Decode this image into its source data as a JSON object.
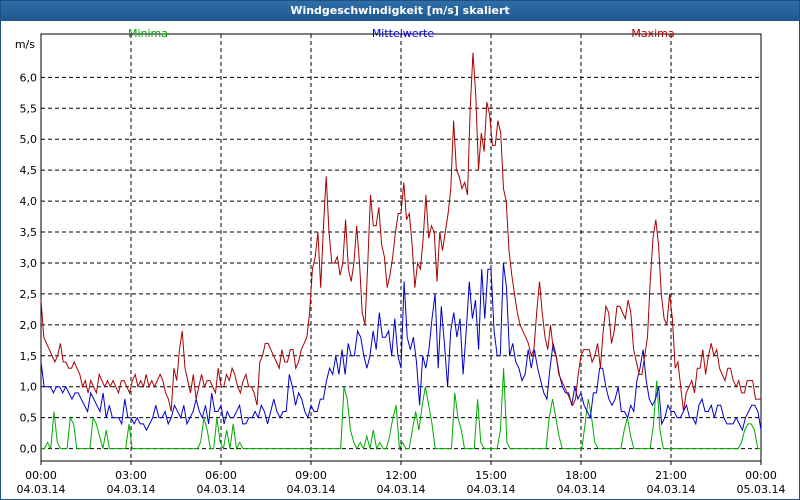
{
  "window": {
    "title": "Windgeschwindigkeit [m/s] skaliert"
  },
  "chart_data": {
    "type": "line",
    "title": "Windgeschwindigkeit [m/s] skaliert",
    "ylabel": "m/s",
    "xlabel": "",
    "grid": true,
    "legend_placement": "top",
    "x_range_hours": [
      0,
      24
    ],
    "ylim": [
      -0.2,
      6.7
    ],
    "y_ticks": [
      "0,0",
      "0,5",
      "1,0",
      "1,5",
      "2,0",
      "2,5",
      "3,0",
      "3,5",
      "4,0",
      "4,5",
      "5,0",
      "5,5",
      "6,0"
    ],
    "y_tick_values": [
      0,
      0.5,
      1,
      1.5,
      2,
      2.5,
      3,
      3.5,
      4,
      4.5,
      5,
      5.5,
      6
    ],
    "x_ticks": [
      {
        "time": "00:00",
        "date": "04.03.14"
      },
      {
        "time": "03:00",
        "date": "04.03.14"
      },
      {
        "time": "06:00",
        "date": "04.03.14"
      },
      {
        "time": "09:00",
        "date": "04.03.14"
      },
      {
        "time": "12:00",
        "date": "04.03.14"
      },
      {
        "time": "15:00",
        "date": "04.03.14"
      },
      {
        "time": "18:00",
        "date": "04.03.14"
      },
      {
        "time": "21:00",
        "date": "04.03.14"
      },
      {
        "time": "00:00",
        "date": "05.03.14"
      }
    ],
    "series": [
      {
        "name": "Minima",
        "color": "#00aa00",
        "values": [
          0,
          0,
          0.1,
          0,
          0.6,
          0.1,
          0,
          0,
          0,
          0.5,
          0.4,
          0,
          0,
          0,
          0,
          0,
          0.5,
          0.4,
          0.2,
          0,
          0.3,
          0,
          0,
          0,
          0,
          0,
          0,
          0.4,
          0,
          0,
          0,
          0,
          0,
          0,
          0,
          0,
          0,
          0,
          0,
          0,
          0,
          0,
          0,
          0,
          0,
          0,
          0,
          0,
          0,
          0.1,
          0.5,
          0.3,
          0,
          0,
          0.5,
          0.1,
          0,
          0.3,
          0,
          0.4,
          0,
          0.1,
          0,
          0,
          0,
          0,
          0,
          0,
          0,
          0,
          0,
          0,
          0,
          0,
          0,
          0,
          0,
          0,
          0,
          0,
          0,
          0,
          0,
          0,
          0,
          0,
          0,
          0,
          0,
          0,
          0,
          0,
          0,
          1,
          0.8,
          0.3,
          0.1,
          0,
          0.1,
          0,
          0.2,
          0,
          0.3,
          0,
          0.1,
          0,
          0,
          0.2,
          0.5,
          0.7,
          0,
          0.1,
          0,
          0,
          0.3,
          0.6,
          0.3,
          0.7,
          1,
          0.7,
          0.4,
          0,
          0,
          0,
          0,
          0,
          0,
          0.9,
          0.5,
          0.3,
          0,
          0,
          0,
          0,
          0.8,
          0.1,
          0,
          0,
          0,
          0,
          0,
          0.3,
          1.3,
          0.1,
          0,
          0,
          0,
          0,
          0,
          0,
          0,
          0,
          0,
          0,
          0,
          0,
          0.5,
          0.8,
          0.5,
          0.2,
          0,
          0,
          0,
          0,
          0,
          0,
          0,
          0.4,
          0.8,
          0.5,
          0.1,
          0,
          0,
          0,
          0,
          0,
          0,
          0,
          0,
          0.3,
          0.5,
          0.2,
          0,
          0,
          0,
          0,
          0,
          0,
          0.4,
          1.1,
          0.3,
          0,
          0,
          0,
          0,
          0,
          0,
          0,
          0,
          0,
          0,
          0,
          0,
          0,
          0,
          0,
          0,
          0,
          0,
          0,
          0,
          0,
          0,
          0,
          0,
          0.1,
          0.3,
          0.4,
          0.4,
          0.3,
          0,
          0
        ],
        "mean": true
      },
      {
        "name": "Mittelwerte",
        "color": "#0000cc",
        "values": [
          1.4,
          1,
          1,
          1,
          0.9,
          1,
          1,
          0.9,
          1,
          0.9,
          0.8,
          0.9,
          0.9,
          0.8,
          0.7,
          0.6,
          0.9,
          0.8,
          0.7,
          0.6,
          0.9,
          0.5,
          0.7,
          0.5,
          0.5,
          0.5,
          0.4,
          0.8,
          0.5,
          0.5,
          0.4,
          0.5,
          0.4,
          0.4,
          0.3,
          0.4,
          0.5,
          0.7,
          0.5,
          0.5,
          0.6,
          0.4,
          0.5,
          0.7,
          0.6,
          0.5,
          0.7,
          0.4,
          0.5,
          0.6,
          0.8,
          0.6,
          0.5,
          0.7,
          0.4,
          0.9,
          0.6,
          0.6,
          0.7,
          0.4,
          0.6,
          0.5,
          0.5,
          0.6,
          0.7,
          0.4,
          0.4,
          0.5,
          0.5,
          0.6,
          0.5,
          0.7,
          0.6,
          0.4,
          0.6,
          0.8,
          0.6,
          0.5,
          0.6,
          0.6,
          1.2,
          1,
          0.7,
          0.9,
          0.8,
          0.6,
          0.5,
          0.7,
          0.6,
          0.6,
          0.8,
          0.8,
          1.1,
          1.3,
          1.2,
          1.5,
          1.2,
          1.6,
          1.2,
          1.7,
          1.5,
          1.5,
          1.9,
          1.8,
          1.5,
          1.3,
          1.5,
          1.9,
          1.6,
          2.2,
          1.8,
          1.8,
          1.9,
          1.5,
          2.1,
          1.5,
          1.3,
          2.7,
          1.8,
          1.6,
          1.8,
          1.4,
          0.7,
          1.5,
          1.3,
          1.6,
          2.1,
          2.5,
          1.3,
          2.3,
          1.7,
          1,
          1.9,
          2.2,
          1.8,
          2.1,
          1.2,
          1.9,
          2.7,
          2.1,
          2.4,
          1.6,
          2.9,
          2.1,
          2.9,
          2.9,
          1.9,
          1.5,
          1.5,
          3,
          2.6,
          1.5,
          1.7,
          1.4,
          1.3,
          1.1,
          1.2,
          1.6,
          1.3,
          1.6,
          1.3,
          1.1,
          0.9,
          0.8,
          1.3,
          1.7,
          1.5,
          1.2,
          1,
          0.9,
          0.9,
          0.7,
          1,
          0.8,
          0.9,
          0.7,
          0.6,
          0.5,
          0.9,
          0.9,
          1.3,
          1.3,
          1,
          0.8,
          0.7,
          0.8,
          1,
          0.6,
          0.6,
          0.5,
          0.7,
          0.6,
          1.1,
          1.3,
          1.6,
          1.1,
          0.8,
          0.7,
          0.8,
          1,
          0.4,
          0.5,
          0.7,
          0.6,
          0.6,
          0.5,
          0.5,
          0.6,
          0.7,
          0.5,
          0.5,
          0.4,
          0.7,
          0.8,
          0.6,
          0.6,
          0.7,
          0.5,
          0.7,
          0.7,
          0.5,
          0.4,
          0.4,
          0.4,
          0.5,
          0.4,
          0.3,
          0.5,
          0.6,
          0.7,
          0.7,
          0.6,
          0.3
        ]
      },
      {
        "name": "Maxima",
        "color": "#aa0000",
        "values": [
          2.4,
          1.8,
          1.7,
          1.6,
          1.5,
          1.4,
          1.5,
          1.7,
          1.4,
          1.4,
          1.3,
          1.3,
          1.4,
          1.3,
          1.2,
          1,
          1.1,
          0.9,
          1.1,
          1,
          0.9,
          1.2,
          1.1,
          1,
          1.1,
          1,
          1.1,
          1,
          0.9,
          1.1,
          1.1,
          1,
          0.9,
          1.1,
          1.2,
          1,
          1.1,
          1,
          1.2,
          1,
          1.1,
          1,
          1.1,
          1.2,
          1.1,
          0.9,
          0.8,
          0.6,
          1.3,
          1.1,
          1.6,
          1.9,
          1.3,
          1.1,
          0.9,
          1.2,
          0.8,
          1,
          1.2,
          1,
          1.1,
          1.1,
          1,
          0.9,
          1.3,
          1,
          1,
          1.2,
          1.1,
          1.3,
          1.2,
          1,
          0.9,
          1.1,
          1.2,
          1,
          1,
          0.9,
          0.7,
          1.4,
          1.5,
          1.7,
          1.7,
          1.6,
          1.5,
          1.4,
          1.3,
          1.6,
          1.4,
          1.4,
          1.6,
          1.6,
          1.3,
          1.4,
          1.6,
          1.7,
          1.8,
          2.2,
          2.9,
          3.1,
          3.5,
          2.6,
          3.6,
          4.4,
          3.5,
          3,
          3,
          3.1,
          2.8,
          3,
          3.7,
          2.9,
          2.7,
          3,
          3.6,
          3,
          2.2,
          2,
          3,
          4.1,
          3.6,
          3.6,
          3.9,
          3.3,
          3.1,
          2.6,
          2.8,
          3.1,
          3.5,
          3.8,
          3.8,
          4.3,
          3.7,
          3.8,
          3.3,
          2.6,
          3,
          2.9,
          3.4,
          4.1,
          3.4,
          3.6,
          3.5,
          2.7,
          3.5,
          3.2,
          3.5,
          3.8,
          4.2,
          5.3,
          4.5,
          4.4,
          4.2,
          4.3,
          4.1,
          5.5,
          6.4,
          5.7,
          4.5,
          5.1,
          4.8,
          5.6,
          5.4,
          4.9,
          4.9,
          5.3,
          5.1,
          4.2,
          4,
          3.2,
          2.8,
          2.5,
          2.2,
          2,
          1.9,
          1.8,
          1.7,
          1.5,
          1.6,
          2.2,
          2.7,
          2.2,
          1.8,
          1.6,
          2,
          1.6,
          1.5,
          1.2,
          1.1,
          1,
          0.9,
          0.8,
          0.7,
          0.8,
          1.2,
          1.5,
          1.6,
          1.6,
          1.6,
          1.4,
          1.5,
          1.7,
          1.3,
          1.9,
          2.3,
          2.2,
          1.7,
          1.9,
          2.3,
          2.3,
          2.2,
          2.1,
          2.4,
          2.2,
          1.6,
          1.4,
          1.2,
          1.2,
          1.5,
          1.8,
          2.7,
          3.4,
          3.7,
          3.3,
          2.5,
          2.1,
          2,
          2.5,
          2.1,
          1.3,
          1.4,
          1,
          0.6,
          0.9,
          1,
          1.1,
          0.9,
          1.3,
          1.3,
          1.6,
          1.2,
          1.5,
          1.7,
          1.5,
          1.6,
          1.3,
          1.2,
          1.1,
          1.3,
          1.3,
          1.1,
          1,
          1.1,
          0.9,
          0.9,
          1.1,
          1.1,
          1.1,
          0.8,
          0.8,
          0.8
        ]
      }
    ]
  }
}
